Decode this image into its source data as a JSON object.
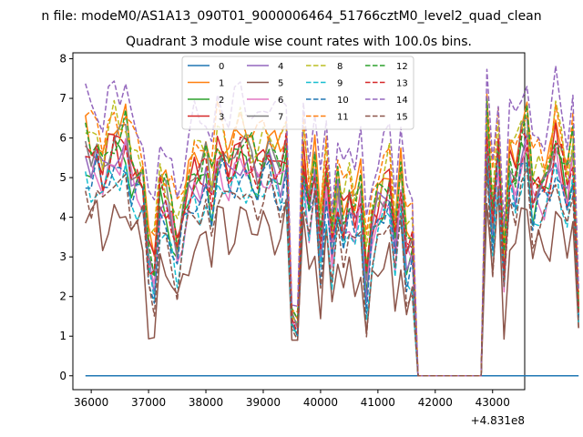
{
  "chart_data": {
    "type": "line",
    "suptitle": "n file: modeM0/AS1A13_090T01_9000006464_51766cztM0_level2_quad_clean",
    "title": "Quadrant 3 module wise count rates with 100.0s bins.",
    "xlabel": "",
    "ylabel": "",
    "x_offset_label": "+4.831e8",
    "xlim": [
      35680,
      43560
    ],
    "ylim": [
      -0.35,
      8.15
    ],
    "xticks": [
      36000,
      37000,
      38000,
      39000,
      40000,
      41000,
      42000,
      43000
    ],
    "xtick_labels": [
      "36000",
      "37000",
      "38000",
      "39000",
      "40000",
      "41000",
      "42000",
      "43000"
    ],
    "yticks": [
      0,
      1,
      2,
      3,
      4,
      5,
      6,
      7,
      8
    ],
    "ytick_labels": [
      "0",
      "1",
      "2",
      "3",
      "4",
      "5",
      "6",
      "7",
      "8"
    ],
    "grid": false,
    "legend_position": "top-center",
    "x_start": 35900,
    "x_step": 100,
    "envelope": [
      5.3,
      5.0,
      5.2,
      4.6,
      5.1,
      5.4,
      5.2,
      5.5,
      4.7,
      4.6,
      4.4,
      2.6,
      2.2,
      4.1,
      3.9,
      3.5,
      2.8,
      3.6,
      4.2,
      4.6,
      4.5,
      4.8,
      4.1,
      5.2,
      5.1,
      4.6,
      5.0,
      5.3,
      5.1,
      4.9,
      4.7,
      5.0,
      5.1,
      4.8,
      4.7,
      5.2,
      1.3,
      1.1,
      5.0,
      3.8,
      4.7,
      2.9,
      4.6,
      2.8,
      4.2,
      3.4,
      4.0,
      3.5,
      4.1,
      2.0,
      3.4,
      3.8,
      4.1,
      4.4,
      2.9,
      4.3,
      2.7,
      2.9,
      -1,
      -1,
      -1,
      -1,
      -1,
      -1,
      -1,
      -1,
      -1,
      -1,
      -1,
      -1,
      5.8,
      3.5,
      5.4,
      2.3,
      4.8,
      4.5,
      5.3,
      5.6,
      4.1,
      4.4,
      4.3,
      4.6,
      5.5,
      4.9,
      4.2,
      5.2,
      1.5
    ],
    "series": [
      {
        "name": "0",
        "color": "#1f77b4",
        "dash": "solid",
        "offset": 0,
        "zero": true
      },
      {
        "name": "1",
        "color": "#ff7f0e",
        "dash": "solid",
        "offset": 0.9
      },
      {
        "name": "2",
        "color": "#2ca02c",
        "dash": "solid",
        "offset": 0.2
      },
      {
        "name": "3",
        "color": "#d62728",
        "dash": "solid",
        "offset": 0.5
      },
      {
        "name": "4",
        "color": "#9467bd",
        "dash": "solid",
        "offset": 0.3
      },
      {
        "name": "5",
        "color": "#8c564b",
        "dash": "solid",
        "offset": -1.2
      },
      {
        "name": "6",
        "color": "#e377c2",
        "dash": "solid",
        "offset": 0.1
      },
      {
        "name": "7",
        "color": "#7f7f7f",
        "dash": "solid",
        "offset": 0.6
      },
      {
        "name": "8",
        "color": "#bcbd22",
        "dash": "dashed",
        "offset": 1.0
      },
      {
        "name": "9",
        "color": "#17becf",
        "dash": "dashed",
        "offset": -0.3
      },
      {
        "name": "10",
        "color": "#1f77b4",
        "dash": "dashed",
        "offset": -0.1
      },
      {
        "name": "11",
        "color": "#ff7f0e",
        "dash": "dashed",
        "offset": 1.2
      },
      {
        "name": "12",
        "color": "#2ca02c",
        "dash": "dashed",
        "offset": 0.7
      },
      {
        "name": "13",
        "color": "#d62728",
        "dash": "dashed",
        "offset": 0.4
      },
      {
        "name": "14",
        "color": "#9467bd",
        "dash": "dashed",
        "offset": 1.8
      },
      {
        "name": "15",
        "color": "#8c564b",
        "dash": "dashed",
        "offset": -0.5
      }
    ]
  }
}
